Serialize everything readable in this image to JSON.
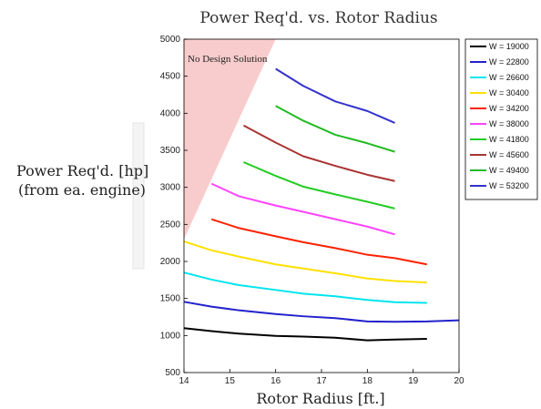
{
  "chart_data": {
    "type": "line",
    "title": "Power Req'd. vs. Rotor Radius",
    "xlabel": "Rotor Radius [ft.]",
    "ylabel_line1": "Power Req'd. [hp]",
    "ylabel_line2": "(from ea. engine)",
    "xlim": [
      14,
      20
    ],
    "ylim": [
      500,
      5000
    ],
    "xticks": [
      14,
      15,
      16,
      17,
      18,
      19,
      20
    ],
    "yticks": [
      500,
      1000,
      1500,
      2000,
      2500,
      3000,
      3500,
      4000,
      4500,
      5000
    ],
    "grid": false,
    "legend_position": "top-right",
    "annotation": "No Design Solution",
    "no_design_region": [
      [
        14,
        2300
      ],
      [
        14,
        5000
      ],
      [
        16.0,
        5000
      ]
    ],
    "series": [
      {
        "name": "W = 19000",
        "color": "#000000",
        "x": [
          14,
          14.6,
          15.2,
          16.0,
          16.6,
          17.3,
          18.0,
          18.6,
          19.3
        ],
        "y": [
          1100,
          1060,
          1025,
          995,
          985,
          970,
          935,
          945,
          955
        ]
      },
      {
        "name": "W = 22800",
        "color": "#2222cc",
        "x": [
          14,
          14.6,
          15.2,
          16.0,
          16.6,
          17.3,
          18.0,
          18.6,
          19.3,
          20.0
        ],
        "y": [
          1455,
          1390,
          1340,
          1290,
          1260,
          1235,
          1190,
          1185,
          1190,
          1205
        ]
      },
      {
        "name": "W = 26600",
        "color": "#00e5ee",
        "x": [
          14,
          14.6,
          15.2,
          16.0,
          16.6,
          17.3,
          18.0,
          18.6,
          19.3
        ],
        "y": [
          1850,
          1755,
          1680,
          1615,
          1565,
          1530,
          1480,
          1450,
          1440
        ]
      },
      {
        "name": "W = 30400",
        "color": "#ffe000",
        "x": [
          14,
          14.6,
          15.2,
          16.0,
          16.6,
          17.3,
          18.0,
          18.6,
          19.3
        ],
        "y": [
          2270,
          2150,
          2065,
          1960,
          1905,
          1840,
          1770,
          1735,
          1715
        ]
      },
      {
        "name": "W = 34200",
        "color": "#ff2200",
        "x": [
          14.6,
          15.2,
          16.0,
          16.6,
          17.3,
          18.0,
          18.6,
          19.3
        ],
        "y": [
          2570,
          2450,
          2340,
          2260,
          2180,
          2090,
          2045,
          1960
        ]
      },
      {
        "name": "W = 38000",
        "color": "#ff44ff",
        "x": [
          14.6,
          15.2,
          16.0,
          16.6,
          17.3,
          18.0,
          18.6
        ],
        "y": [
          3050,
          2880,
          2755,
          2670,
          2570,
          2470,
          2365
        ]
      },
      {
        "name": "W = 41800",
        "color": "#22cc22",
        "x": [
          15.3,
          16.0,
          16.6,
          17.3,
          18.0,
          18.6
        ],
        "y": [
          3340,
          3155,
          3010,
          2905,
          2805,
          2715
        ]
      },
      {
        "name": "W = 45600",
        "color": "#aa3333",
        "x": [
          15.3,
          16.0,
          16.6,
          17.3,
          18.0,
          18.6
        ],
        "y": [
          3835,
          3605,
          3420,
          3290,
          3170,
          3085
        ]
      },
      {
        "name": "W = 49400",
        "color": "#22bb22",
        "x": [
          16.0,
          16.6,
          17.3,
          18.0,
          18.6
        ],
        "y": [
          4100,
          3900,
          3710,
          3595,
          3480
        ]
      },
      {
        "name": "W = 53200",
        "color": "#3333cc",
        "x": [
          16.0,
          16.6,
          17.3,
          18.0,
          18.6
        ],
        "y": [
          4600,
          4370,
          4160,
          4030,
          3870
        ]
      }
    ]
  }
}
